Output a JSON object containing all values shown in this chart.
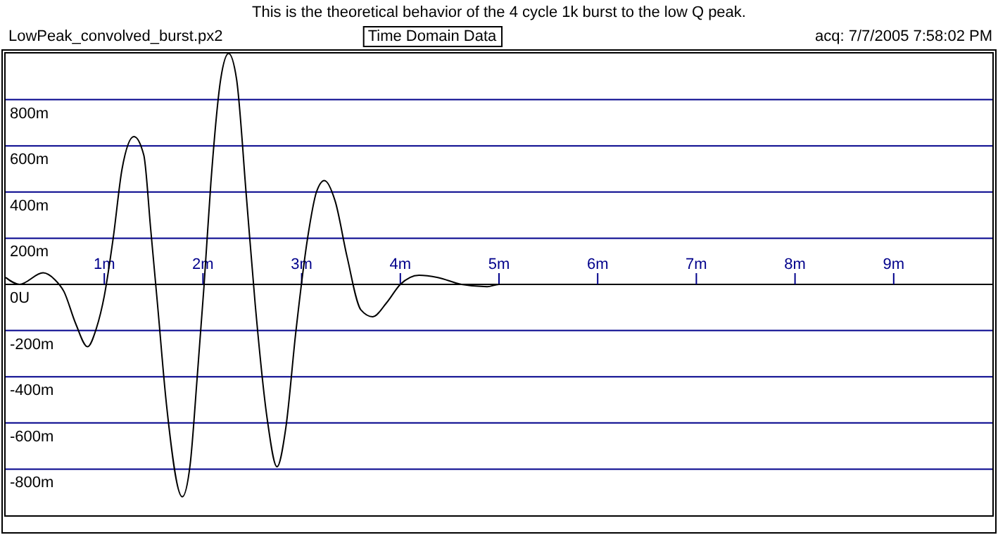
{
  "chart_data": {
    "type": "line",
    "title": "This is the theoretical behavior of the 4 cycle 1k burst to the low Q peak.",
    "subtitle": "Time Domain Data",
    "annotations": [
      "LowPeak_convolved_burst.px2",
      "acq: 7/7/2005 7:58:02 PM"
    ],
    "x": [
      0,
      0.14,
      0.38,
      0.5,
      0.59,
      0.71,
      0.83,
      0.92,
      1.0,
      1.09,
      1.18,
      1.3,
      1.4,
      1.47,
      1.54,
      1.63,
      1.79,
      1.87,
      1.94,
      2.01,
      2.08,
      2.18,
      2.26,
      2.34,
      2.44,
      2.53,
      2.65,
      2.75,
      2.84,
      2.94,
      3.06,
      3.15,
      3.23,
      3.34,
      3.46,
      3.6,
      3.72,
      3.86,
      4.0,
      4.19,
      4.38,
      4.62,
      4.88,
      5.0,
      5.14,
      5.56
    ],
    "series": [
      {
        "color": "#000000",
        "values": [
          30,
          0,
          50,
          20,
          -30,
          -170,
          -270,
          -190,
          -50,
          200,
          500,
          640,
          560,
          240,
          -90,
          -520,
          -920,
          -780,
          -410,
          -10,
          440,
          890,
          1000,
          890,
          380,
          -90,
          -580,
          -790,
          -620,
          -210,
          200,
          400,
          450,
          360,
          120,
          -110,
          -140,
          -80,
          0,
          40,
          30,
          0,
          -10,
          0,
          0,
          0
        ]
      }
    ],
    "xlim": [
      0,
      10
    ],
    "xticks": [
      {
        "value": 1,
        "label": "1m"
      },
      {
        "value": 2,
        "label": "2m"
      },
      {
        "value": 3,
        "label": "3m"
      },
      {
        "value": 4,
        "label": "4m"
      },
      {
        "value": 5,
        "label": "5m"
      },
      {
        "value": 6,
        "label": "6m"
      },
      {
        "value": 7,
        "label": "7m"
      },
      {
        "value": 8,
        "label": "8m"
      },
      {
        "value": 9,
        "label": "9m"
      }
    ],
    "ylim": [
      -1000,
      1000
    ],
    "yticks": [
      {
        "value": -800,
        "label": "-800m"
      },
      {
        "value": -600,
        "label": "-600m"
      },
      {
        "value": -400,
        "label": "-400m"
      },
      {
        "value": -200,
        "label": "-200m"
      },
      {
        "value": 0,
        "label": "0U"
      },
      {
        "value": 200,
        "label": "200m"
      },
      {
        "value": 400,
        "label": "400m"
      },
      {
        "value": 600,
        "label": "600m"
      },
      {
        "value": 800,
        "label": "800m"
      }
    ],
    "grid": "y",
    "marker": "none",
    "line_style": "solid"
  }
}
